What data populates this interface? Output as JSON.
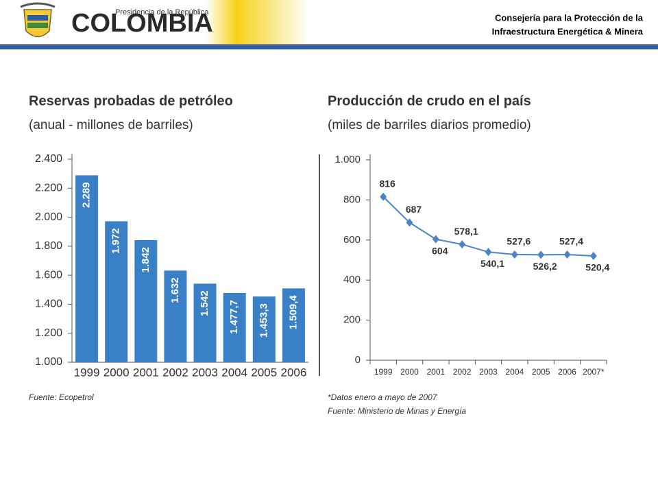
{
  "header": {
    "kicker": "Presidencia de la República",
    "brand": "COLOMBIA",
    "office_line1": "Consejería para la Protección de la",
    "office_line2": "Infraestructura Energética & Minera"
  },
  "chart_data": [
    {
      "type": "bar",
      "title": "Reservas probadas de petróleo",
      "subtitle": "(anual - millones de barriles)",
      "categories": [
        "1999",
        "2000",
        "2001",
        "2002",
        "2003",
        "2004",
        "2005",
        "2006"
      ],
      "values": [
        2289,
        1972,
        1842,
        1632,
        1542,
        1477.7,
        1453.3,
        1509.4
      ],
      "value_labels": [
        "2.289",
        "1.972",
        "1.842",
        "1.632",
        "1.542",
        "1.477,7",
        "1.453,3",
        "1.509,4"
      ],
      "color": "#3a80c6",
      "ylim": [
        1000,
        2400
      ],
      "yticks": [
        {
          "value": 1000,
          "label": "1.000"
        },
        {
          "value": 1200,
          "label": "1.200"
        },
        {
          "value": 1400,
          "label": "1.400"
        },
        {
          "value": 1600,
          "label": "1.600"
        },
        {
          "value": 1800,
          "label": "1.800"
        },
        {
          "value": 2000,
          "label": "2.000"
        },
        {
          "value": 2200,
          "label": "2.200"
        },
        {
          "value": 2400,
          "label": "2.400"
        }
      ],
      "notes": [
        "Fuente: Ecopetrol"
      ]
    },
    {
      "type": "line",
      "title": "Producción de crudo en el país",
      "subtitle": "(miles de barriles diarios promedio)",
      "categories": [
        "1999",
        "2000",
        "2001",
        "2002",
        "2003",
        "2004",
        "2005",
        "2006",
        "2007*"
      ],
      "values": [
        816,
        687,
        604,
        578.1,
        540.1,
        527.6,
        526.2,
        527.4,
        520.4
      ],
      "value_labels": [
        "816",
        "687",
        "604",
        "578,1",
        "540,1",
        "527,6",
        "526,2",
        "527,4",
        "520,4"
      ],
      "color": "#4a86c5",
      "ylim": [
        0,
        1000
      ],
      "yticks": [
        0,
        200,
        400,
        600,
        800,
        {
          "value": 1000,
          "label": "1.000"
        }
      ],
      "notes": [
        "*Datos enero a mayo de 2007",
        "Fuente: Ministerio de Minas y Energía"
      ]
    }
  ]
}
